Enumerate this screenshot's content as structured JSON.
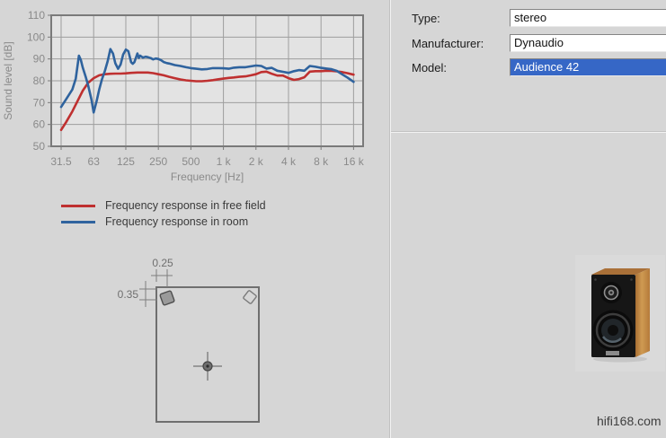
{
  "window": {
    "background": "#d6d6d6",
    "watermark": "hifi168.com"
  },
  "chart_data": {
    "type": "line",
    "title": "",
    "xlabel": "Frequency [Hz]",
    "ylabel": "Sound level [dB]",
    "xscale": "log",
    "ylim": [
      50,
      110
    ],
    "xlim": [
      26,
      19600
    ],
    "grid": true,
    "legend_position": "below chart",
    "plot_bg": "#e3e3e3",
    "grid_color": "#9e9e9e",
    "border_color": "#7a7a7a",
    "axis_text_color": "#8a8a8a",
    "y_ticks": [
      50,
      60,
      70,
      80,
      90,
      100,
      110
    ],
    "x_ticks": [
      31.5,
      63,
      125,
      250,
      500,
      1000,
      2000,
      4000,
      8000,
      16000
    ],
    "x_tick_labels": [
      "31.5",
      "63",
      "125",
      "250",
      "500",
      "1 k",
      "2 k",
      "4 k",
      "8 k",
      "16 k"
    ],
    "series": [
      {
        "name": "Frequency response in free field",
        "color": "#bf3030",
        "points": [
          [
            31.5,
            57.5
          ],
          [
            35,
            61
          ],
          [
            40,
            66
          ],
          [
            45,
            71
          ],
          [
            50,
            75.5
          ],
          [
            56,
            79
          ],
          [
            63,
            81.2
          ],
          [
            71,
            82.5
          ],
          [
            80,
            83
          ],
          [
            90,
            83.2
          ],
          [
            100,
            83.3
          ],
          [
            112,
            83.3
          ],
          [
            125,
            83.4
          ],
          [
            140,
            83.6
          ],
          [
            160,
            83.8
          ],
          [
            180,
            83.8
          ],
          [
            200,
            83.8
          ],
          [
            224,
            83.5
          ],
          [
            250,
            83
          ],
          [
            280,
            82.5
          ],
          [
            315,
            81.8
          ],
          [
            355,
            81.2
          ],
          [
            400,
            80.6
          ],
          [
            450,
            80.2
          ],
          [
            500,
            80
          ],
          [
            560,
            79.8
          ],
          [
            630,
            79.8
          ],
          [
            710,
            80
          ],
          [
            800,
            80.3
          ],
          [
            900,
            80.7
          ],
          [
            1000,
            81
          ],
          [
            1120,
            81.3
          ],
          [
            1250,
            81.5
          ],
          [
            1400,
            81.8
          ],
          [
            1600,
            82
          ],
          [
            1800,
            82.5
          ],
          [
            2000,
            83
          ],
          [
            2240,
            84
          ],
          [
            2500,
            84.2
          ],
          [
            2800,
            83.2
          ],
          [
            3150,
            82.4
          ],
          [
            3550,
            82.4
          ],
          [
            4000,
            81.2
          ],
          [
            4500,
            80.4
          ],
          [
            5000,
            80.8
          ],
          [
            5600,
            81.6
          ],
          [
            6300,
            84.2
          ],
          [
            7100,
            84.4
          ],
          [
            8000,
            84.4
          ],
          [
            9000,
            84.6
          ],
          [
            10000,
            84.5
          ],
          [
            11200,
            84.3
          ],
          [
            12500,
            84
          ],
          [
            14000,
            83.5
          ],
          [
            16000,
            82.8
          ]
        ]
      },
      {
        "name": "Frequency response in room",
        "color": "#2f639e",
        "points": [
          [
            31.5,
            68
          ],
          [
            35,
            71.5
          ],
          [
            40,
            76
          ],
          [
            43,
            81
          ],
          [
            46,
            91.5
          ],
          [
            48,
            89.5
          ],
          [
            50,
            86
          ],
          [
            53,
            82
          ],
          [
            56,
            78
          ],
          [
            60,
            71.5
          ],
          [
            63,
            65.5
          ],
          [
            67,
            70.5
          ],
          [
            71,
            76
          ],
          [
            75,
            80.5
          ],
          [
            80,
            84.5
          ],
          [
            85,
            89
          ],
          [
            90,
            94.5
          ],
          [
            95,
            92.5
          ],
          [
            100,
            88
          ],
          [
            106,
            85.5
          ],
          [
            112,
            87.5
          ],
          [
            118,
            92
          ],
          [
            125,
            94.3
          ],
          [
            132,
            93.5
          ],
          [
            140,
            88.5
          ],
          [
            145,
            87.8
          ],
          [
            150,
            88.5
          ],
          [
            160,
            92.5
          ],
          [
            165,
            90.5
          ],
          [
            170,
            91.5
          ],
          [
            180,
            90.6
          ],
          [
            190,
            91
          ],
          [
            200,
            90.8
          ],
          [
            212,
            90.4
          ],
          [
            224,
            89.8
          ],
          [
            236,
            90.2
          ],
          [
            250,
            90
          ],
          [
            265,
            89.4
          ],
          [
            280,
            88.6
          ],
          [
            300,
            88.1
          ],
          [
            315,
            87.9
          ],
          [
            355,
            87.2
          ],
          [
            400,
            86.8
          ],
          [
            450,
            86.2
          ],
          [
            500,
            85.8
          ],
          [
            560,
            85.5
          ],
          [
            630,
            85.2
          ],
          [
            710,
            85.4
          ],
          [
            800,
            85.8
          ],
          [
            900,
            85.8
          ],
          [
            1000,
            85.7
          ],
          [
            1120,
            85.5
          ],
          [
            1250,
            86
          ],
          [
            1400,
            86.2
          ],
          [
            1600,
            86.2
          ],
          [
            1800,
            86.6
          ],
          [
            2000,
            87
          ],
          [
            2240,
            86.8
          ],
          [
            2500,
            85.6
          ],
          [
            2800,
            85.9
          ],
          [
            3150,
            84.6
          ],
          [
            3550,
            84.1
          ],
          [
            4000,
            83.6
          ],
          [
            4500,
            84.4
          ],
          [
            5000,
            84.9
          ],
          [
            5600,
            84.6
          ],
          [
            6300,
            86.8
          ],
          [
            7100,
            86.4
          ],
          [
            8000,
            85.9
          ],
          [
            9000,
            85.6
          ],
          [
            10000,
            85.3
          ],
          [
            11200,
            84.5
          ],
          [
            12500,
            83
          ],
          [
            14000,
            81.5
          ],
          [
            16000,
            79.5
          ]
        ]
      }
    ]
  },
  "floorplan": {
    "top_distance": "0.25",
    "left_distance": "0.35"
  },
  "form": {
    "fields": [
      {
        "label": "Type:",
        "value": "stereo",
        "selected": false
      },
      {
        "label": "Manufacturer:",
        "value": "Dynaudio",
        "selected": false
      },
      {
        "label": "Model:",
        "value": "Audience 42",
        "selected": true
      }
    ]
  },
  "colors": {
    "selection_bg": "#3667c6",
    "selection_text": "#ffffff",
    "free_field_line": "#bf3030",
    "room_line": "#2f639e"
  }
}
